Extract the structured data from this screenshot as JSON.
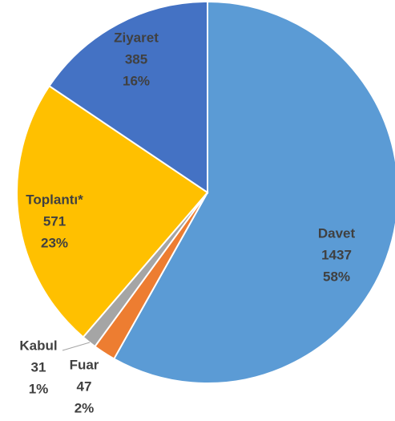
{
  "chart_data": {
    "type": "pie",
    "categories": [
      "Davet",
      "Fuar",
      "Kabul",
      "Toplantı*",
      "Ziyaret"
    ],
    "values": [
      1437,
      47,
      31,
      571,
      385
    ],
    "percent_labels": [
      "58%",
      "2%",
      "1%",
      "23%",
      "16%"
    ],
    "colors": [
      "#5b9bd5",
      "#ed7d31",
      "#a5a5a5",
      "#ffc000",
      "#4472c4"
    ]
  }
}
